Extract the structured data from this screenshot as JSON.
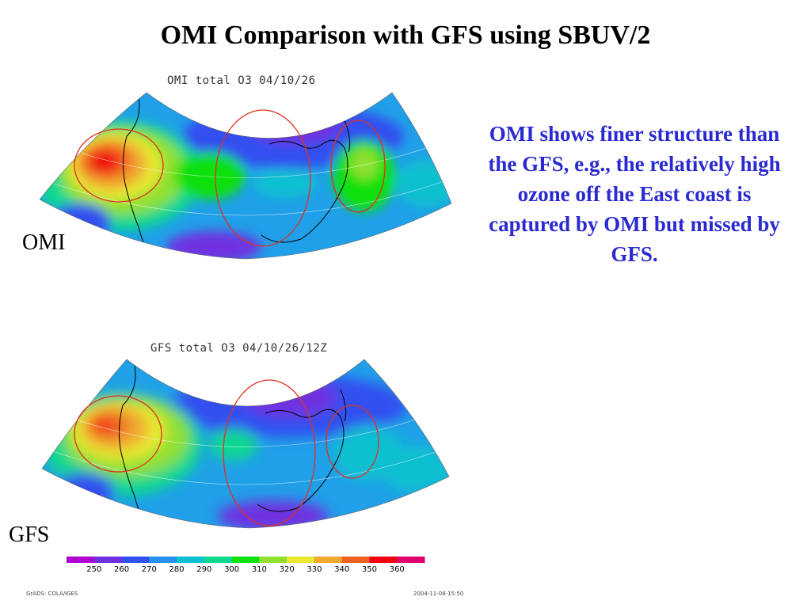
{
  "slide": {
    "title": "OMI Comparison with GFS using SBUV/2",
    "note": "OMI shows finer structure than the GFS, e.g.,  the relatively high ozone off the East coast is captured by OMI but missed by GFS."
  },
  "panels": [
    {
      "id": "omi",
      "map_title": "OMI total O3 04/10/26",
      "side_label": "OMI"
    },
    {
      "id": "gfs",
      "map_title": "GFS total O3 04/10/26/12Z",
      "side_label": "GFS"
    }
  ],
  "colorbar": {
    "labels": [
      "250",
      "260",
      "270",
      "280",
      "290",
      "300",
      "310",
      "320",
      "330",
      "340",
      "350",
      "360"
    ],
    "colors": [
      "#b000d0",
      "#7030e0",
      "#3050f0",
      "#2890f0",
      "#10c0d0",
      "#10d890",
      "#10e010",
      "#90e030",
      "#e8e830",
      "#f0a830",
      "#f06020",
      "#f00010",
      "#e00070"
    ]
  },
  "footer": {
    "left": "GrADS: COLA/IGES",
    "right": "2004-11-08-15:50"
  },
  "colors": {
    "note_text": "#2a2ad0",
    "circle": "#e03020"
  }
}
